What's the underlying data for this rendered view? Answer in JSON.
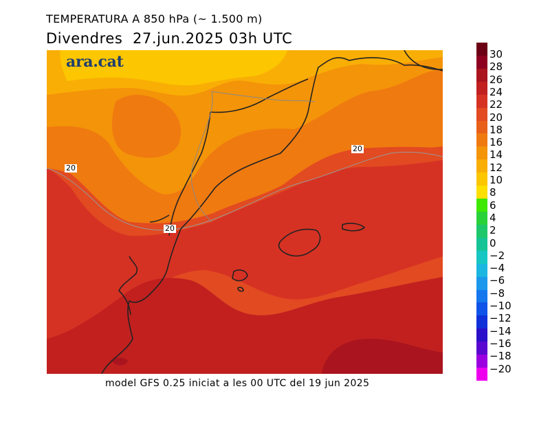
{
  "title": {
    "line1": "TEMPERATURA A 850 hPa (~ 1.500 m)",
    "line2": "Divendres  27.jun.2025 03h UTC"
  },
  "logo": "ara.cat",
  "contour_labels": [
    "20",
    "20",
    "20"
  ],
  "footer": "model GFS 0.25 iniciat a les 00 UTC del 19 jun 2025",
  "legend": {
    "labels": [
      "30",
      "28",
      "26",
      "24",
      "22",
      "20",
      "18",
      "16",
      "14",
      "12",
      "10",
      "8",
      "6",
      "4",
      "2",
      "0",
      "−2",
      "−4",
      "−6",
      "−8",
      "−10",
      "−12",
      "−14",
      "−16",
      "−18",
      "−20"
    ],
    "colors": [
      "#6b0015",
      "#8e0020",
      "#a9141e",
      "#c1201f",
      "#d63224",
      "#e24a21",
      "#e86019",
      "#ef7a10",
      "#f49409",
      "#f9ae06",
      "#fcc600",
      "#fddf00",
      "#3fe800",
      "#2ad23a",
      "#1ec86a",
      "#16c496",
      "#18c7c3",
      "#1bb7e0",
      "#1b98ec",
      "#1477ee",
      "#1053e8",
      "#1030d8",
      "#2a10c8",
      "#5a08d0",
      "#9a00e0",
      "#ee00ee"
    ]
  }
}
